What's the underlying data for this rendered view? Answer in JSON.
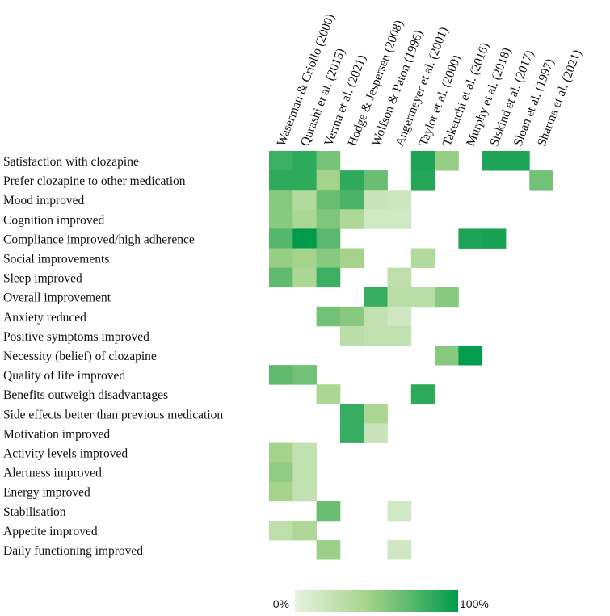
{
  "chart_data": {
    "type": "heatmap",
    "title": "",
    "columns": [
      "Waserman & Criollo (2000)",
      "Qurashi et al. (2015)",
      "Verma et al. (2021)",
      "Hodge & Jespersen (2008)",
      "Wolfson & Paton (1996)",
      "Angermeyer et al. (2001)",
      "Taylor et al. (2000)",
      "Takeuchi et al. (2016)",
      "Murphy et al. (2018)",
      "Siskind et al. (2017)",
      "Sloan et al. (1997)",
      "Sharma et al. (2021)"
    ],
    "rows": [
      "Satisfaction with clozapine",
      "Prefer clozapine to other medication",
      "Mood improved",
      "Cognition improved",
      "Compliance improved/high adherence",
      "Social improvements",
      "Sleep improved",
      "Overall improvement",
      "Anxiety reduced",
      "Positive symptoms improved",
      "Necessity (belief) of clozapine",
      "Quality of life improved",
      "Benefits outweigh disadvantages",
      "Side effects better than previous medication",
      "Motivation improved",
      "Activity levels improved",
      "Alertness improved",
      "Energy improved",
      "Stabilisation",
      "Appetite improved",
      "Daily functioning improved"
    ],
    "values": [
      [
        80,
        85,
        60,
        null,
        null,
        null,
        90,
        50,
        null,
        90,
        90,
        null
      ],
      [
        85,
        85,
        45,
        85,
        65,
        null,
        88,
        null,
        null,
        null,
        null,
        62
      ],
      [
        55,
        35,
        65,
        75,
        20,
        18,
        null,
        null,
        null,
        null,
        null,
        null
      ],
      [
        55,
        40,
        58,
        38,
        15,
        15,
        null,
        null,
        null,
        null,
        null,
        null
      ],
      [
        72,
        100,
        70,
        null,
        null,
        null,
        null,
        null,
        90,
        92,
        null,
        null
      ],
      [
        50,
        45,
        55,
        45,
        null,
        null,
        35,
        null,
        null,
        null,
        null,
        null
      ],
      [
        68,
        40,
        80,
        null,
        null,
        28,
        null,
        null,
        null,
        null,
        null,
        null
      ],
      [
        null,
        null,
        null,
        null,
        82,
        30,
        30,
        55,
        null,
        null,
        null,
        null
      ],
      [
        null,
        null,
        62,
        55,
        25,
        16,
        null,
        null,
        null,
        null,
        null,
        null
      ],
      [
        null,
        null,
        null,
        30,
        25,
        25,
        null,
        null,
        null,
        null,
        null,
        null
      ],
      [
        null,
        null,
        null,
        null,
        null,
        null,
        null,
        55,
        98,
        null,
        null,
        null
      ],
      [
        68,
        62,
        null,
        null,
        null,
        null,
        null,
        null,
        null,
        null,
        null,
        null
      ],
      [
        null,
        null,
        40,
        null,
        null,
        null,
        85,
        null,
        null,
        null,
        null,
        null
      ],
      [
        null,
        null,
        null,
        82,
        40,
        null,
        null,
        null,
        null,
        null,
        null,
        null
      ],
      [
        null,
        null,
        null,
        82,
        20,
        null,
        null,
        null,
        null,
        null,
        null,
        null
      ],
      [
        45,
        25,
        null,
        null,
        null,
        null,
        null,
        null,
        null,
        null,
        null,
        null
      ],
      [
        52,
        25,
        null,
        null,
        null,
        null,
        null,
        null,
        null,
        null,
        null,
        null
      ],
      [
        45,
        25,
        null,
        null,
        null,
        null,
        null,
        null,
        null,
        null,
        null,
        null
      ],
      [
        null,
        null,
        65,
        null,
        null,
        15,
        null,
        null,
        null,
        null,
        null,
        null
      ],
      [
        28,
        38,
        null,
        null,
        null,
        null,
        null,
        null,
        null,
        null,
        null,
        null
      ],
      [
        null,
        null,
        48,
        null,
        null,
        16,
        null,
        null,
        null,
        null,
        null,
        null
      ]
    ],
    "value_range": [
      0,
      100
    ],
    "colorbar": {
      "min_label": "0%",
      "max_label": "100%",
      "colors": [
        "#e6f2e0",
        "#a5d38b",
        "#009a4b"
      ]
    }
  }
}
